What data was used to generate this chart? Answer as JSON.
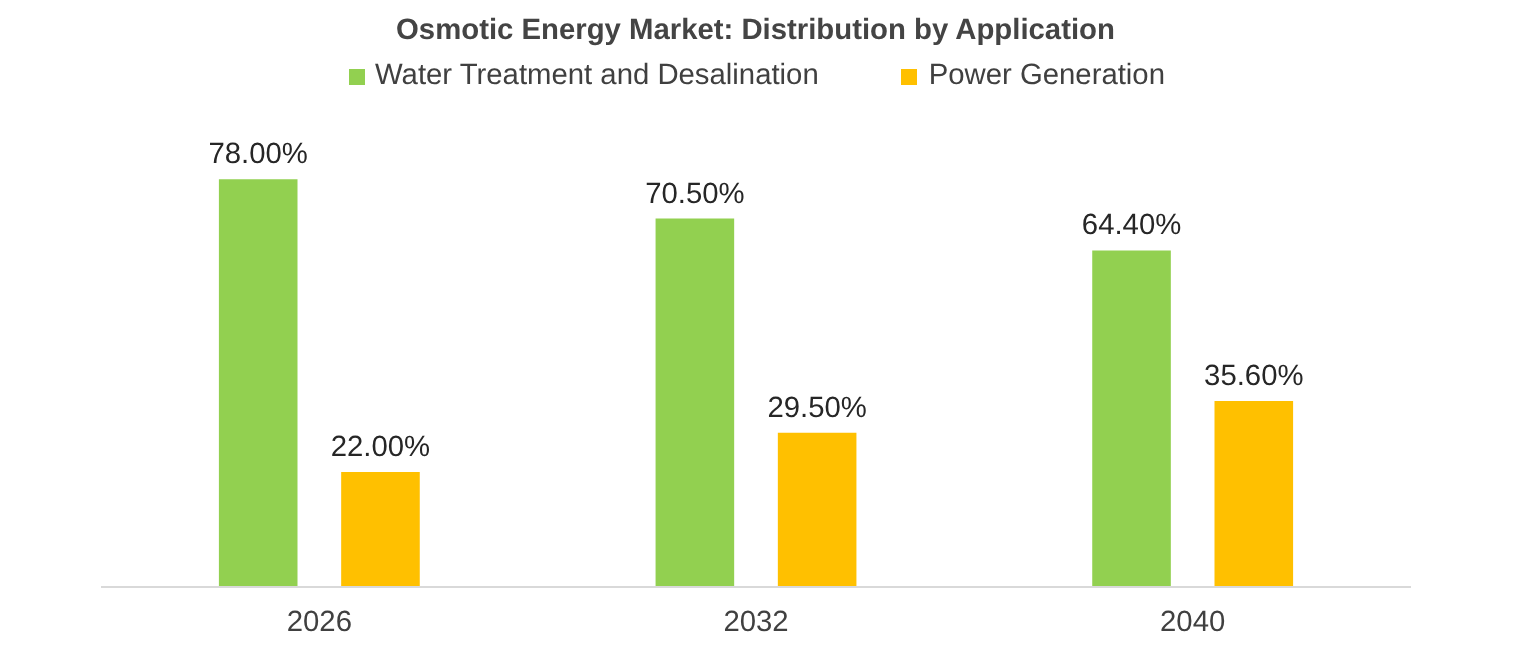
{
  "chart_data": {
    "type": "bar",
    "title": "Osmotic Energy Market: Distribution by Application",
    "categories": [
      "2026",
      "2032",
      "2040"
    ],
    "series": [
      {
        "name": "Water Treatment and Desalination",
        "color": "#92d050",
        "values": [
          78.0,
          70.5,
          64.4
        ],
        "value_labels": [
          "78.00%",
          "70.50%",
          "64.40%"
        ]
      },
      {
        "name": "Power Generation",
        "color": "#ffc000",
        "values": [
          22.0,
          29.5,
          35.6
        ],
        "value_labels": [
          "22.00%",
          "29.50%",
          "35.60%"
        ]
      }
    ],
    "legend": "top"
  }
}
